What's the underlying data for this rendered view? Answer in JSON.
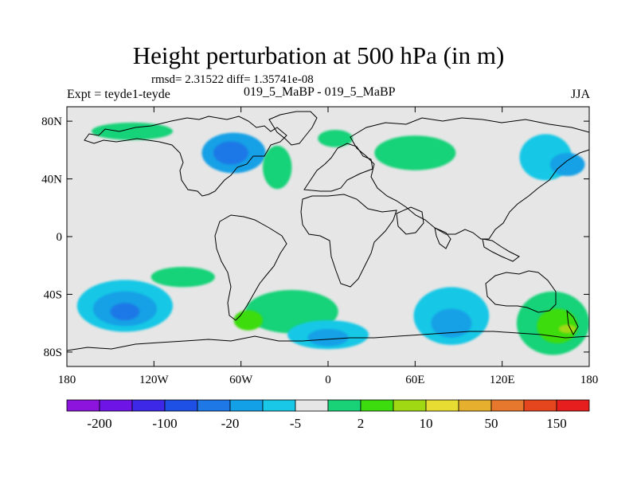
{
  "title": "Height perturbation at 500 hPa (in m)",
  "stats": "rmsd= 2.31522 diff= 1.35741e-08",
  "left_label": "Expt = teyde1-teyde",
  "center_label": "019_5_MaBP - 019_5_MaBP",
  "right_label": "JJA",
  "colors": {
    "background_field": "#e6e6e6",
    "neg_light": "#19c8e6",
    "neg_mid": "#14a0e6",
    "neg_strong": "#1e78e6",
    "pos_light": "#19d278",
    "pos_mid": "#3cdc0f",
    "pos_strong": "#a0d814"
  },
  "chart_data": {
    "type": "map",
    "projection": "cylindrical-equidistant",
    "lat_ticks": [
      {
        "value": 80,
        "label": "80N"
      },
      {
        "value": 40,
        "label": "40N"
      },
      {
        "value": 0,
        "label": "0"
      },
      {
        "value": -40,
        "label": "40S"
      },
      {
        "value": -80,
        "label": "80S"
      }
    ],
    "lon_ticks": [
      {
        "value": -180,
        "label": "180"
      },
      {
        "value": -120,
        "label": "120W"
      },
      {
        "value": -60,
        "label": "60W"
      },
      {
        "value": 0,
        "label": "0"
      },
      {
        "value": 60,
        "label": "60E"
      },
      {
        "value": 120,
        "label": "120E"
      },
      {
        "value": 180,
        "label": "180"
      }
    ],
    "lon_range": [
      -180,
      180
    ],
    "lat_range": [
      -90,
      90
    ],
    "colorbar": {
      "labels": [
        "-200",
        "-100",
        "-20",
        "-5",
        "2",
        "10",
        "50",
        "150"
      ],
      "colors": [
        "#8c14dc",
        "#6e14e6",
        "#3c28e6",
        "#1e50e6",
        "#1e78e6",
        "#14a0e6",
        "#19c8e6",
        "#e6e6e6",
        "#19d278",
        "#3cdc0f",
        "#a0d814",
        "#e6dc32",
        "#e6af2d",
        "#e6782d",
        "#e6461e",
        "#e61e1e"
      ]
    },
    "anomaly_regions": [
      {
        "name": "north-pacific-positive",
        "lon": -135,
        "lat": 73,
        "rx": 28,
        "ry": 6,
        "level": 1
      },
      {
        "name": "north-america-negative-core",
        "lon": -65,
        "lat": 58,
        "rx": 22,
        "ry": 14,
        "level": -2
      },
      {
        "name": "north-america-negative-inner",
        "lon": -67,
        "lat": 58,
        "rx": 12,
        "ry": 8,
        "level": -3
      },
      {
        "name": "atlantic-positive",
        "lon": -35,
        "lat": 48,
        "rx": 10,
        "ry": 15,
        "level": 1
      },
      {
        "name": "europe-positive",
        "lon": 5,
        "lat": 68,
        "rx": 12,
        "ry": 6,
        "level": 1
      },
      {
        "name": "central-asia-positive",
        "lon": 60,
        "lat": 58,
        "rx": 28,
        "ry": 12,
        "level": 1
      },
      {
        "name": "east-asia-negative",
        "lon": 150,
        "lat": 55,
        "rx": 18,
        "ry": 16,
        "level": -1
      },
      {
        "name": "north-pacific-east-negative",
        "lon": 165,
        "lat": 50,
        "rx": 12,
        "ry": 8,
        "level": -2
      },
      {
        "name": "south-pacific-negative",
        "lon": -140,
        "lat": -48,
        "rx": 33,
        "ry": 18,
        "level": -1
      },
      {
        "name": "south-pacific-negative-mid",
        "lon": -140,
        "lat": -50,
        "rx": 22,
        "ry": 12,
        "level": -2
      },
      {
        "name": "south-pacific-negative-core",
        "lon": -140,
        "lat": -52,
        "rx": 10,
        "ry": 6,
        "level": -3
      },
      {
        "name": "south-atlantic-positive",
        "lon": -25,
        "lat": -52,
        "rx": 32,
        "ry": 15,
        "level": 1
      },
      {
        "name": "south-atlantic-positive-core",
        "lon": -55,
        "lat": -58,
        "rx": 10,
        "ry": 7,
        "level": 2
      },
      {
        "name": "southern-ocean-negative",
        "lon": 0,
        "lat": -68,
        "rx": 28,
        "ry": 10,
        "level": -1
      },
      {
        "name": "southern-ocean-negative-core",
        "lon": 0,
        "lat": -70,
        "rx": 14,
        "ry": 6,
        "level": -2
      },
      {
        "name": "indian-ocean-negative",
        "lon": 85,
        "lat": -55,
        "rx": 26,
        "ry": 20,
        "level": -1
      },
      {
        "name": "indian-ocean-negative-core",
        "lon": 85,
        "lat": -60,
        "rx": 14,
        "ry": 10,
        "level": -2
      },
      {
        "name": "australia-positive",
        "lon": 155,
        "lat": -60,
        "rx": 25,
        "ry": 22,
        "level": 1
      },
      {
        "name": "australia-positive-mid",
        "lon": 158,
        "lat": -62,
        "rx": 14,
        "ry": 12,
        "level": 2
      },
      {
        "name": "australia-positive-core",
        "lon": 165,
        "lat": -64,
        "rx": 6,
        "ry": 3,
        "level": 3
      },
      {
        "name": "tropical-pacific-positive",
        "lon": -100,
        "lat": -28,
        "rx": 22,
        "ry": 7,
        "level": 1
      }
    ]
  }
}
